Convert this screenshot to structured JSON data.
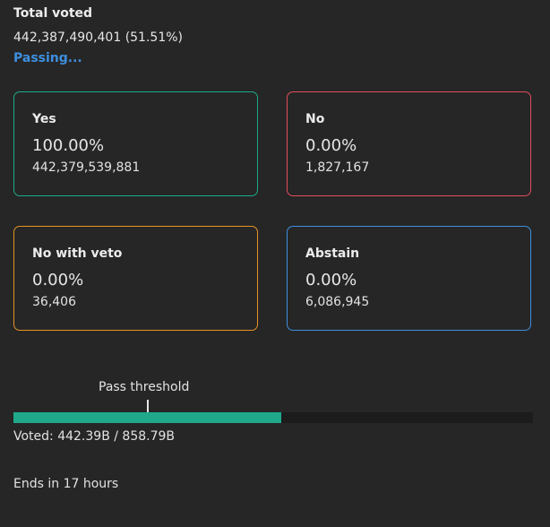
{
  "summary": {
    "title": "Total voted",
    "value": "442,387,490,401 (51.51%)",
    "status": "Passing..."
  },
  "options": {
    "yes": {
      "label": "Yes",
      "percent": "100.00%",
      "count": "442,379,539,881",
      "color": "#1fa98a"
    },
    "no": {
      "label": "No",
      "percent": "0.00%",
      "count": "1,827,167",
      "color": "#e14d5b"
    },
    "veto": {
      "label": "No with veto",
      "percent": "0.00%",
      "count": "36,406",
      "color": "#e59324"
    },
    "abstain": {
      "label": "Abstain",
      "percent": "0.00%",
      "count": "6,086,945",
      "color": "#3d8fe0"
    }
  },
  "progress": {
    "threshold_label": "Pass threshold",
    "voted_fraction": 0.5151,
    "threshold_fraction": 0.2586,
    "voted_text": "Voted: 442.39B / 858.79B"
  },
  "footer": {
    "ends": "Ends in 17 hours"
  }
}
